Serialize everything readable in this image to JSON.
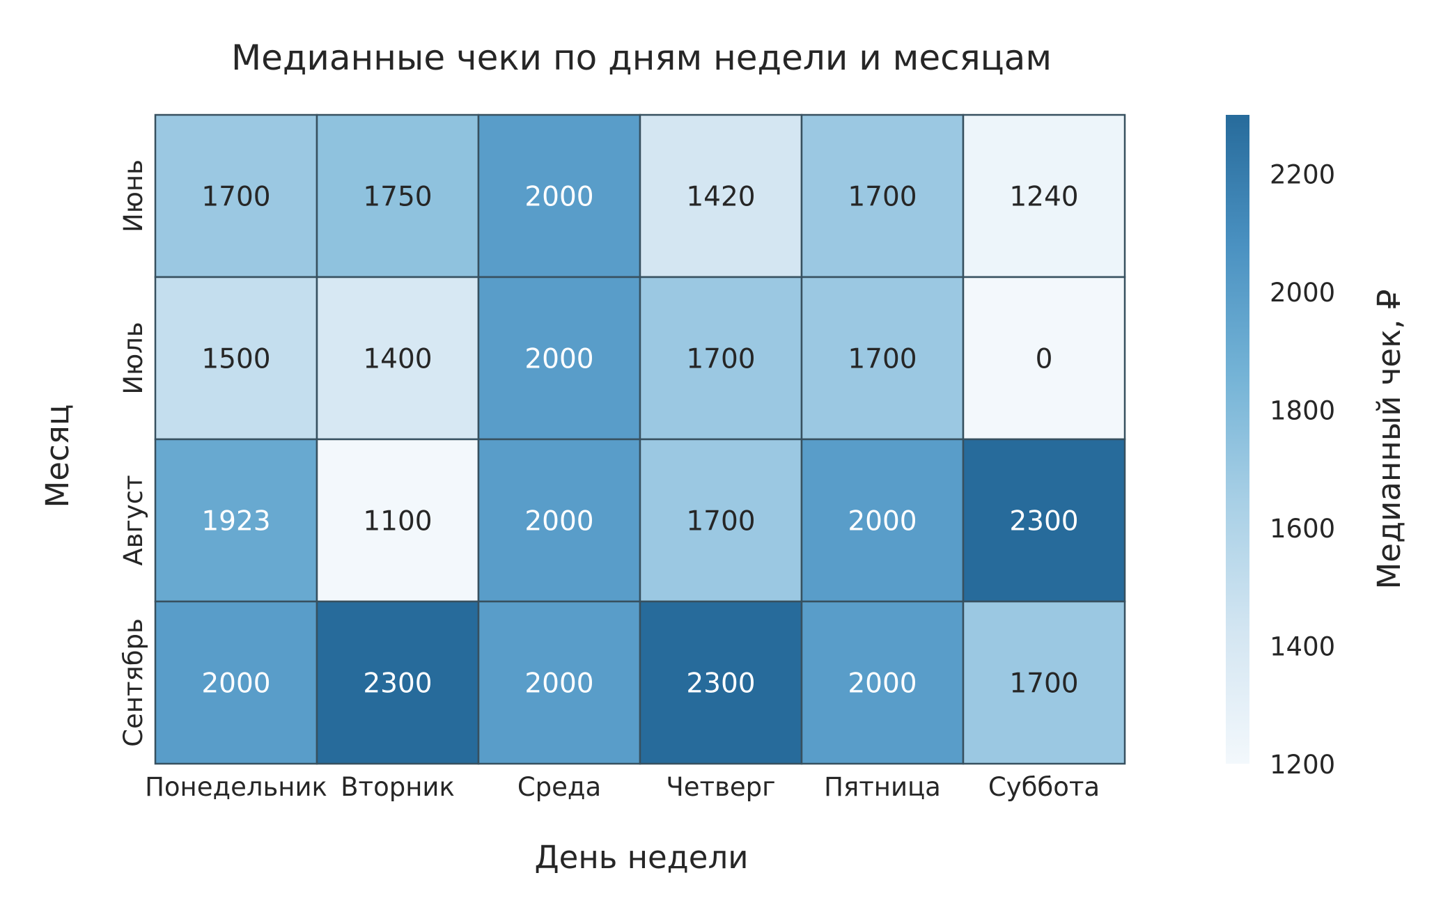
{
  "chart_data": {
    "type": "heatmap",
    "title": "Медианные чеки по дням недели и месяцам",
    "xlabel": "День недели",
    "ylabel": "Месяц",
    "colorbar_label": "Медианный чек, ₽",
    "x_categories": [
      "Понедельник",
      "Вторник",
      "Среда",
      "Четверг",
      "Пятница",
      "Суббота"
    ],
    "y_categories": [
      "Июнь",
      "Июль",
      "Август",
      "Сентябрь"
    ],
    "values": [
      [
        1700,
        1750,
        2000,
        1420,
        1700,
        1240
      ],
      [
        1500,
        1400,
        2000,
        1700,
        1700,
        0
      ],
      [
        1923,
        1100,
        2000,
        1700,
        2000,
        2300
      ],
      [
        2000,
        2300,
        2000,
        2300,
        2000,
        1700
      ]
    ],
    "color_range": [
      1200,
      2300
    ],
    "colorbar_ticks": [
      1200,
      1400,
      1600,
      1800,
      2000,
      2200
    ],
    "colormap": [
      "#f3f8fc",
      "#d4e6f2",
      "#a9d0e6",
      "#74b3d6",
      "#4a91c1",
      "#276b9b"
    ],
    "cell_border_color": "#37505f",
    "legend_placement": "right"
  }
}
